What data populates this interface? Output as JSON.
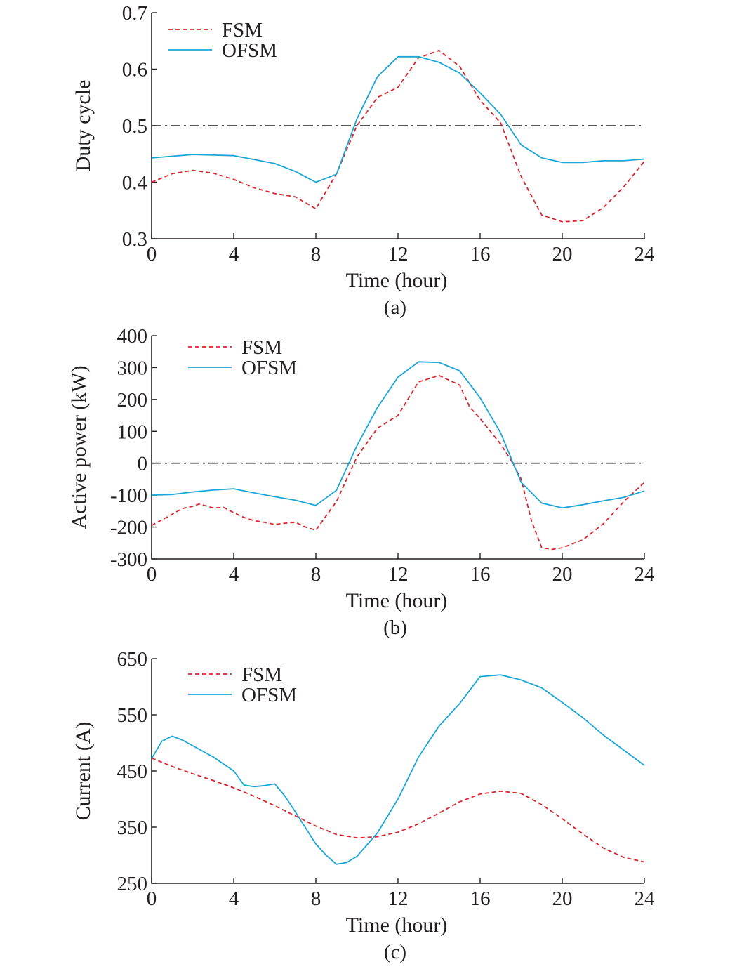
{
  "colors": {
    "FSM": "#d7262e",
    "OFSM": "#1aa6d6",
    "axis": "#231f20",
    "reference": "#231f20"
  },
  "chart_data": [
    {
      "type": "line",
      "caption": "(a)",
      "title": "",
      "xlabel": "Time (hour)",
      "ylabel": "Duty cycle",
      "xlim": [
        0,
        24
      ],
      "ylim": [
        0.3,
        0.7
      ],
      "xticks": [
        0,
        4,
        8,
        12,
        16,
        20,
        24
      ],
      "yticks": [
        0.3,
        0.4,
        0.5,
        0.6,
        0.7
      ],
      "xtick_labels": [
        "0",
        "4",
        "8",
        "12",
        "16",
        "20",
        "24"
      ],
      "ytick_labels": [
        "0.3",
        "0.4",
        "0.5",
        "0.6",
        "0.7"
      ],
      "reference_line": {
        "y": 0.5,
        "style": "dash-dot"
      },
      "legend": {
        "position": "top-left",
        "entries": [
          "FSM",
          "OFSM"
        ]
      },
      "series": [
        {
          "name": "FSM",
          "style": "dashed",
          "x": [
            0,
            1,
            2,
            3,
            4,
            5,
            6,
            7,
            8,
            9,
            10,
            11,
            12,
            13,
            14,
            15,
            16,
            17,
            18,
            19,
            20,
            21,
            22,
            23,
            24
          ],
          "y": [
            0.4,
            0.415,
            0.421,
            0.416,
            0.405,
            0.39,
            0.38,
            0.374,
            0.353,
            0.415,
            0.5,
            0.55,
            0.568,
            0.62,
            0.633,
            0.605,
            0.545,
            0.505,
            0.41,
            0.342,
            0.33,
            0.332,
            0.355,
            0.392,
            0.437
          ]
        },
        {
          "name": "OFSM",
          "style": "solid",
          "x": [
            0,
            1,
            2,
            3,
            4,
            5,
            6,
            7,
            8,
            9,
            10,
            11,
            12,
            13,
            14,
            15,
            16,
            17,
            18,
            19,
            20,
            21,
            22,
            23,
            24
          ],
          "y": [
            0.443,
            0.446,
            0.449,
            0.448,
            0.447,
            0.44,
            0.433,
            0.419,
            0.4,
            0.414,
            0.512,
            0.587,
            0.622,
            0.622,
            0.612,
            0.593,
            0.558,
            0.52,
            0.466,
            0.443,
            0.435,
            0.435,
            0.438,
            0.438,
            0.441
          ]
        }
      ]
    },
    {
      "type": "line",
      "caption": "(b)",
      "title": "",
      "xlabel": "Time (hour)",
      "ylabel": "Active power (kW)",
      "xlim": [
        0,
        24
      ],
      "ylim": [
        -300,
        400
      ],
      "xticks": [
        0,
        4,
        8,
        12,
        16,
        20,
        24
      ],
      "yticks": [
        -300,
        -200,
        -100,
        0,
        100,
        200,
        300,
        400
      ],
      "xtick_labels": [
        "0",
        "4",
        "8",
        "12",
        "16",
        "20",
        "24"
      ],
      "ytick_labels": [
        "-300",
        "-200",
        "-100",
        "0",
        "100",
        "200",
        "300",
        "400"
      ],
      "reference_line": {
        "y": 0,
        "style": "dash-dot"
      },
      "legend": {
        "position": "top-left",
        "entries": [
          "FSM",
          "OFSM"
        ]
      },
      "series": [
        {
          "name": "FSM",
          "style": "dashed",
          "x": [
            0,
            1,
            1.5,
            2,
            2.3,
            2.6,
            3,
            3.5,
            4,
            4.5,
            5,
            5.5,
            6,
            6.5,
            7,
            7.5,
            8,
            8.5,
            9,
            9.5,
            10,
            11,
            12,
            13,
            14,
            15,
            15.5,
            16,
            16.5,
            17,
            17.5,
            18,
            18.5,
            19,
            19.5,
            20,
            21,
            22,
            23,
            24
          ],
          "y": [
            -195,
            -160,
            -142,
            -135,
            -128,
            -133,
            -140,
            -138,
            -155,
            -170,
            -180,
            -185,
            -192,
            -188,
            -185,
            -200,
            -210,
            -165,
            -120,
            -50,
            20,
            110,
            150,
            255,
            275,
            245,
            175,
            140,
            100,
            60,
            10,
            -50,
            -180,
            -265,
            -270,
            -265,
            -240,
            -190,
            -120,
            -60
          ]
        },
        {
          "name": "OFSM",
          "style": "solid",
          "x": [
            0,
            1,
            2,
            3,
            4,
            5,
            6,
            7,
            8,
            9,
            10,
            11,
            12,
            13,
            14,
            15,
            16,
            17,
            18,
            19,
            20,
            21,
            22,
            23,
            24
          ],
          "y": [
            -100,
            -98,
            -90,
            -84,
            -80,
            -93,
            -105,
            -116,
            -132,
            -85,
            55,
            175,
            270,
            318,
            316,
            290,
            205,
            95,
            -60,
            -125,
            -140,
            -130,
            -118,
            -107,
            -87
          ]
        }
      ]
    },
    {
      "type": "line",
      "caption": "(c)",
      "title": "",
      "xlabel": "Time (hour)",
      "ylabel": "Current (A)",
      "xlim": [
        0,
        24
      ],
      "ylim": [
        250,
        650
      ],
      "xticks": [
        0,
        4,
        8,
        12,
        16,
        20,
        24
      ],
      "yticks": [
        250,
        350,
        450,
        550,
        650
      ],
      "xtick_labels": [
        "0",
        "4",
        "8",
        "12",
        "16",
        "20",
        "24"
      ],
      "ytick_labels": [
        "250",
        "350",
        "450",
        "550",
        "650"
      ],
      "reference_line": null,
      "legend": {
        "position": "top-left",
        "entries": [
          "FSM",
          "OFSM"
        ]
      },
      "series": [
        {
          "name": "FSM",
          "style": "dashed",
          "x": [
            0,
            1,
            2,
            3,
            4,
            5,
            6,
            7,
            8,
            9,
            10,
            11,
            12,
            13,
            14,
            15,
            16,
            17,
            18,
            19,
            20,
            21,
            22,
            23,
            24
          ],
          "y": [
            473,
            458,
            445,
            433,
            420,
            405,
            388,
            370,
            352,
            337,
            331,
            333,
            341,
            356,
            375,
            395,
            409,
            414,
            410,
            390,
            365,
            338,
            313,
            296,
            288
          ]
        },
        {
          "name": "OFSM",
          "style": "solid",
          "x": [
            0,
            0.5,
            1,
            1.5,
            2,
            3,
            4,
            4.5,
            5,
            5.5,
            6,
            6.5,
            7,
            8,
            8.5,
            9,
            9.5,
            10,
            11,
            12,
            13,
            14,
            15,
            16,
            17,
            18,
            19,
            20,
            21,
            22,
            23,
            24
          ],
          "y": [
            472,
            503,
            512,
            505,
            495,
            475,
            450,
            425,
            422,
            424,
            427,
            405,
            377,
            320,
            300,
            284,
            287,
            298,
            340,
            400,
            475,
            530,
            570,
            618,
            621,
            612,
            598,
            572,
            545,
            514,
            487,
            460
          ]
        }
      ]
    }
  ]
}
